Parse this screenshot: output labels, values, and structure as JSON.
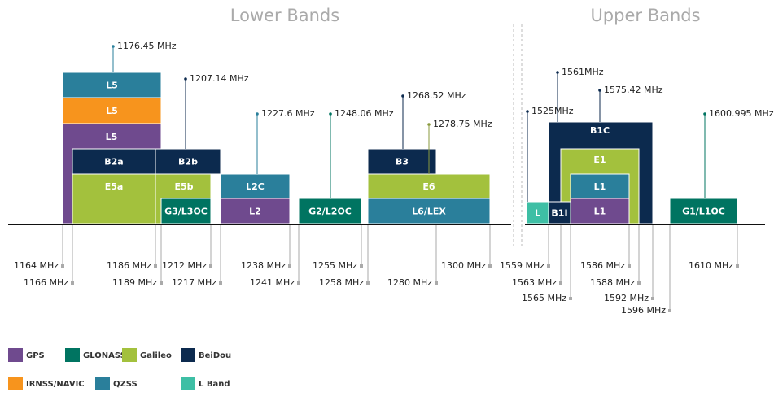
{
  "titles": {
    "lower": "Lower Bands",
    "upper": "Upper Bands"
  },
  "bands": [
    {
      "label": "L5",
      "color": "#2a7f9b"
    },
    {
      "label": "L5",
      "color": "#f7941d"
    },
    {
      "label": "L5",
      "color": "#6f4a8e"
    },
    {
      "label": "B2a",
      "color": "#0c2a4e"
    },
    {
      "label": "B2b",
      "color": "#0c2a4e"
    },
    {
      "label": "E5a",
      "color": "#a3c13d"
    },
    {
      "label": "E5b",
      "color": "#a3c13d"
    },
    {
      "label": "G3/L3OC",
      "color": "#007461"
    },
    {
      "label": "L2C",
      "color": "#2a7f9b"
    },
    {
      "label": "L2",
      "color": "#6f4a8e"
    },
    {
      "label": "G2/L2OC",
      "color": "#007461"
    },
    {
      "label": "B3",
      "color": "#0c2a4e"
    },
    {
      "label": "E6",
      "color": "#a3c13d"
    },
    {
      "label": "L6/LEX",
      "color": "#2a7f9b"
    },
    {
      "label": "L",
      "color": "#3ebfa5"
    },
    {
      "label": "B1C",
      "color": "#0c2a4e"
    },
    {
      "label": "E1",
      "color": "#a3c13d"
    },
    {
      "label": "L1",
      "color": "#2a7f9b"
    },
    {
      "label": "L1",
      "color": "#6f4a8e"
    },
    {
      "label": "B1I",
      "color": "#0c2a4e"
    },
    {
      "label": "G1/L1OC",
      "color": "#007461"
    }
  ],
  "center_frequencies": [
    "1176.45 MHz",
    "1207.14 MHz",
    "1227.6 MHz",
    "1248.06 MHz",
    "1268.52 MHz",
    "1278.75 MHz",
    "1525MHz",
    "1561MHz",
    "1575.42 MHz",
    "1600.995 MHz"
  ],
  "edge_frequencies": [
    "1164 MHz",
    "1166 MHz",
    "1186 MHz",
    "1189 MHz",
    "1212 MHz",
    "1217 MHz",
    "1238 MHz",
    "1241 MHz",
    "1255 MHz",
    "1258 MHz",
    "1280 MHz",
    "1300 MHz",
    "1559 MHz",
    "1563 MHz",
    "1565 MHz",
    "1586 MHz",
    "1588 MHz",
    "1592 MHz",
    "1596 MHz",
    "1610 MHz"
  ],
  "legend": [
    {
      "name": "GPS",
      "color": "#6f4a8e"
    },
    {
      "name": "GLONASS",
      "color": "#007461"
    },
    {
      "name": "Galileo",
      "color": "#a3c13d"
    },
    {
      "name": "BeiDou",
      "color": "#0c2a4e"
    },
    {
      "name": "IRNSS/NAVIC",
      "color": "#f7941d"
    },
    {
      "name": "QZSS",
      "color": "#2a7f9b"
    },
    {
      "name": "L Band",
      "color": "#3ebfa5"
    }
  ]
}
